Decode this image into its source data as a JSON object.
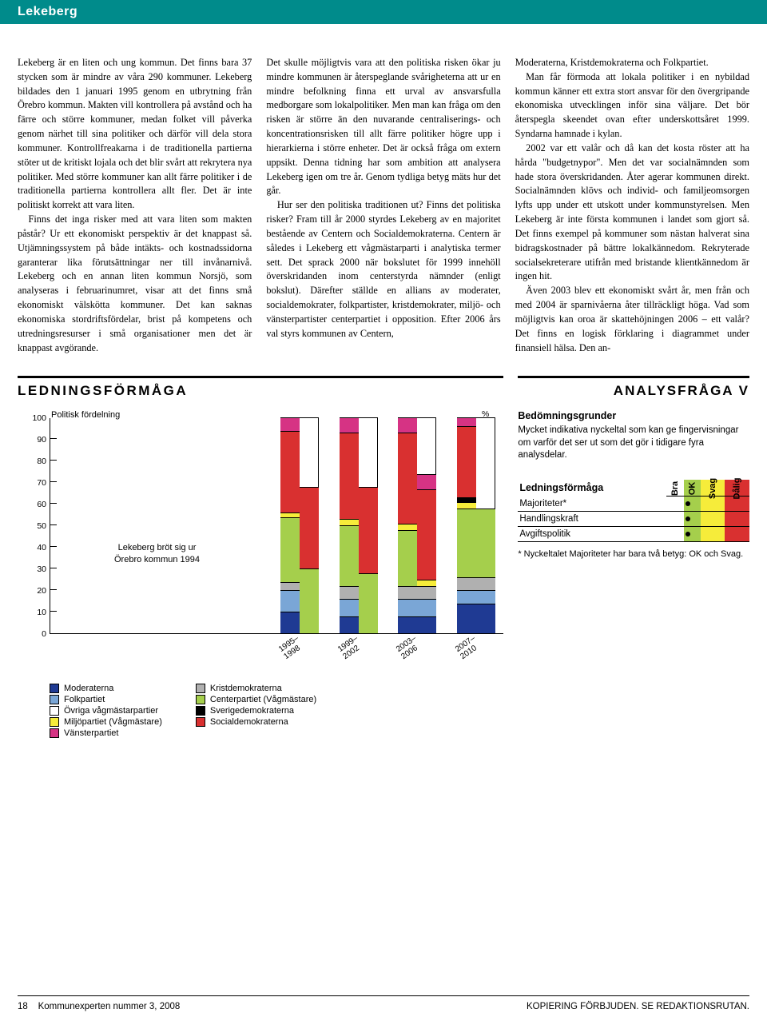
{
  "title": "Lekeberg",
  "columns": {
    "c1p1": "Lekeberg är en liten och ung kommun. Det finns bara 37 stycken som är mindre av våra 290 kommuner. Lekeberg bildades den 1 januari 1995 genom en utbrytning från Örebro kommun. Makten vill kontrollera på avstånd och ha färre och större kommuner, medan folket vill påverka genom närhet till sina politiker och därför vill dela stora kommuner. Kontrollfreakarna i de traditionella partierna stöter ut de kritiskt lojala och det blir svårt att rekrytera nya politiker. Med större kommuner kan allt färre politiker i de traditionella partierna kontrollera allt fler. Det är inte politiskt korrekt att vara liten.",
    "c1p2": "Finns det inga risker med att vara liten som makten påstår? Ur ett ekonomiskt perspektiv är det knappast så. Utjämningssystem på både intäkts- och kostnadssidorna garanterar lika förutsättningar ner till invånarnivå. Lekeberg och en annan liten kommun Norsjö, som analyseras i februarinumret, visar att det finns små ekonomiskt välskötta kommuner. Det kan saknas ekonomiska stordriftsfördelar, brist på kompetens och utredningsresurser i små organisationer men det är knappast avgörande.",
    "c2p1": "Det skulle möjligtvis vara att den politiska risken ökar ju mindre kommunen är återspeglande svårigheterna att ur en mindre befolkning finna ett urval av ansvarsfulla medborgare som lokalpolitiker. Men man kan fråga om den risken är större än den nuvarande centraliserings- och koncentrationsrisken till allt färre politiker högre upp i hierarkierna i större enheter. Det är också fråga om extern uppsikt. Denna tidning har som ambition att analysera Lekeberg igen om tre år. Genom tydliga betyg mäts hur det går.",
    "c2p2": "Hur ser den politiska traditionen ut? Finns det politiska risker? Fram till år 2000 styrdes Lekeberg av en majoritet bestående av Centern och Socialdemokraterna. Centern är således i Lekeberg ett vågmästarparti i analytiska termer sett. Det sprack 2000 när bokslutet för 1999 innehöll överskridanden inom centerstyrda nämnder (enligt bokslut). Därefter ställde en allians av moderater, socialdemokrater, folkpartister, kristdemokrater, miljö- och vänsterpartister centerpartiet i opposition. Efter 2006 års val styrs kommunen av Centern,",
    "c3p1": "Moderaterna, Kristdemokraterna och Folkpartiet.",
    "c3p2": "Man får förmoda att lokala politiker i en nybildad kommun känner ett extra stort ansvar för den övergripande ekonomiska utvecklingen inför sina väljare. Det bör återspegla skeendet ovan efter underskottsåret 1999. Syndarna hamnade i kylan.",
    "c3p3": "2002 var ett valår och då kan det kosta röster att ha hårda \"budgetnypor\". Men det var socialnämnden som hade stora överskridanden. Åter agerar kommunen direkt. Socialnämnden klövs och individ- och familjeomsorgen lyfts upp under ett utskott under kommunstyrelsen. Men Lekeberg är inte första kommunen i landet som gjort så. Det finns exempel på kommuner som nästan halverat sina bidragskostnader på bättre lokalkännedom. Rekryterade socialsekreterare utifrån med bristande klientkännedom är ingen hit.",
    "c3p4": "Även 2003 blev ett ekonomiskt svårt år, men från och med 2004 är sparnivåerna åter tillräckligt höga. Vad som möjligtvis kan oroa är skattehöjningen 2006 – ett valår? Det finns en logisk förklaring i diagrammet under finansiell hälsa. Den an-"
  },
  "section_heading": "LEDNINGSFÖRMÅGA",
  "analysis_heading": "ANALYSFRÅGA V",
  "chart": {
    "title": "Politisk fördelning",
    "y_unit": "%",
    "y_ticks": [
      0,
      10,
      20,
      30,
      40,
      50,
      60,
      70,
      80,
      90,
      100
    ],
    "note_line1": "Lekeberg bröt sig ur",
    "note_line2": "Örebro kommun 1994",
    "x_labels": [
      "1995–\n1998",
      "1999–\n2002",
      "2003–\n2006",
      "2007–\n2010"
    ],
    "colors": {
      "moderaterna": "#1f3a93",
      "folkpartiet": "#7aa6d6",
      "ovriga": "#ffffff",
      "miljopartiet": "#f6ec3a",
      "vansterpartiet": "#d63384",
      "kristdemokraterna": "#b0b0b0",
      "centerpartiet": "#a5cf4c",
      "sverigedemokraterna": "#000000",
      "socialdemokraterna": "#d93030"
    },
    "bars": [
      {
        "x": 0.55,
        "left": [
          {
            "c": "moderaterna",
            "v": 10
          },
          {
            "c": "folkpartiet",
            "v": 10
          },
          {
            "c": "kristdemokraterna",
            "v": 4
          },
          {
            "c": "centerpartiet",
            "v": 30
          },
          {
            "c": "miljopartiet",
            "v": 2
          },
          {
            "c": "socialdemokraterna",
            "v": 38
          },
          {
            "c": "vansterpartiet",
            "v": 6
          }
        ],
        "right": [
          {
            "c": "centerpartiet",
            "v": 30
          },
          {
            "c": "socialdemokraterna",
            "v": 38
          }
        ]
      },
      {
        "x": 0.68,
        "left": [
          {
            "c": "moderaterna",
            "v": 8
          },
          {
            "c": "folkpartiet",
            "v": 8
          },
          {
            "c": "kristdemokraterna",
            "v": 6
          },
          {
            "c": "centerpartiet",
            "v": 28
          },
          {
            "c": "miljopartiet",
            "v": 3
          },
          {
            "c": "socialdemokraterna",
            "v": 40
          },
          {
            "c": "vansterpartiet",
            "v": 7
          }
        ],
        "right": [
          {
            "c": "centerpartiet",
            "v": 28
          },
          {
            "c": "socialdemokraterna",
            "v": 40
          }
        ]
      },
      {
        "x": 0.81,
        "left": [
          {
            "c": "moderaterna",
            "v": 8
          },
          {
            "c": "folkpartiet",
            "v": 8
          },
          {
            "c": "kristdemokraterna",
            "v": 6
          },
          {
            "c": "centerpartiet",
            "v": 26
          },
          {
            "c": "miljopartiet",
            "v": 3
          },
          {
            "c": "socialdemokraterna",
            "v": 42
          },
          {
            "c": "vansterpartiet",
            "v": 7
          }
        ],
        "right": [
          {
            "c": "moderaterna",
            "v": 8
          },
          {
            "c": "folkpartiet",
            "v": 8
          },
          {
            "c": "kristdemokraterna",
            "v": 6
          },
          {
            "c": "miljopartiet",
            "v": 3
          },
          {
            "c": "socialdemokraterna",
            "v": 42
          },
          {
            "c": "vansterpartiet",
            "v": 7
          }
        ]
      },
      {
        "x": 0.94,
        "left": [
          {
            "c": "moderaterna",
            "v": 14
          },
          {
            "c": "folkpartiet",
            "v": 6
          },
          {
            "c": "kristdemokraterna",
            "v": 6
          },
          {
            "c": "centerpartiet",
            "v": 32
          },
          {
            "c": "miljopartiet",
            "v": 3
          },
          {
            "c": "sverigedemokraterna",
            "v": 2
          },
          {
            "c": "socialdemokraterna",
            "v": 33
          },
          {
            "c": "vansterpartiet",
            "v": 4
          }
        ],
        "right": [
          {
            "c": "moderaterna",
            "v": 14
          },
          {
            "c": "folkpartiet",
            "v": 6
          },
          {
            "c": "kristdemokraterna",
            "v": 6
          },
          {
            "c": "centerpartiet",
            "v": 32
          }
        ]
      }
    ],
    "legend_left": [
      {
        "c": "moderaterna",
        "label": "Moderaterna"
      },
      {
        "c": "folkpartiet",
        "label": "Folkpartiet"
      },
      {
        "c": "ovriga",
        "label": "Övriga vågmästarpartier"
      },
      {
        "c": "miljopartiet",
        "label": "Miljöpartiet (Vågmästare)"
      },
      {
        "c": "vansterpartiet",
        "label": "Vänsterpartiet"
      }
    ],
    "legend_right": [
      {
        "c": "kristdemokraterna",
        "label": "Kristdemokraterna"
      },
      {
        "c": "centerpartiet",
        "label": "Centerpartiet (Vågmästare)"
      },
      {
        "c": "sverigedemokraterna",
        "label": "Sverigedemokraterna"
      },
      {
        "c": "socialdemokraterna",
        "label": "Socialdemokraterna"
      }
    ]
  },
  "assessment": {
    "heading": "Bedömningsgrunder",
    "desc": "Mycket indikativa nyckeltal som kan ge fingervisningar om varför det ser ut som det gör i tidigare fyra analysdelar.",
    "table_heading": "Ledningsförmåga",
    "ratings": [
      "Bra",
      "OK",
      "Svag",
      "Dålig"
    ],
    "rating_bg": [
      "#ffffff",
      "#a5cf4c",
      "#f6ec3a",
      "#d93030"
    ],
    "rows": [
      {
        "label": "Majoriteter*",
        "col": 1
      },
      {
        "label": "Handlingskraft",
        "col": 1
      },
      {
        "label": "Avgiftspolitik",
        "col": 1
      }
    ],
    "footnote": "* Nyckeltalet Majoriteter har bara två betyg: OK och Svag."
  },
  "footer": {
    "left_page": "18",
    "left_text": "Kommunexperten nummer 3, 2008",
    "right": "KOPIERING FÖRBJUDEN. SE REDAKTIONSRUTAN."
  }
}
